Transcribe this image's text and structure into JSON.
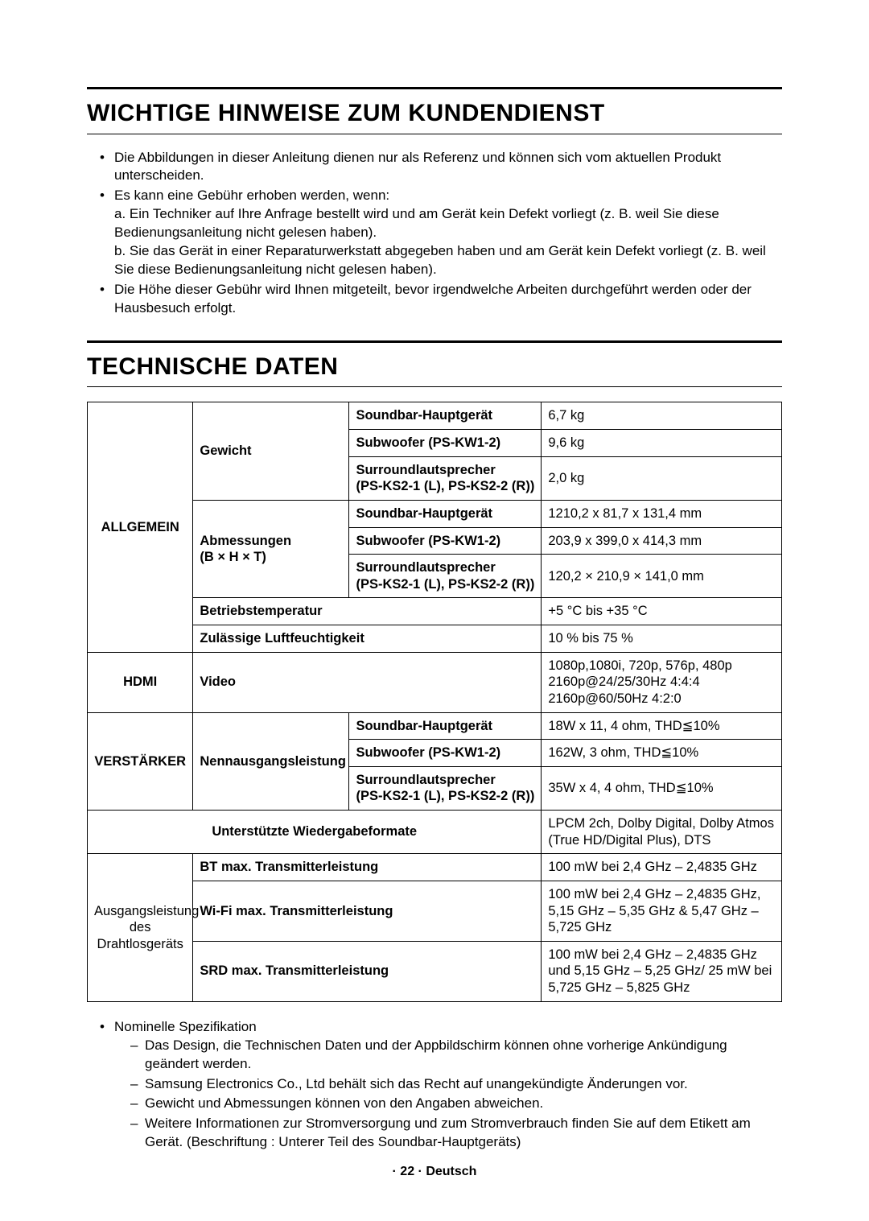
{
  "section1": {
    "title": "WICHTIGE HINWEISE ZUM KUNDENDIENST",
    "bullets": [
      "Die Abbildungen in dieser Anleitung dienen nur als Referenz und können sich vom aktuellen Produkt unterscheiden.",
      "Es kann eine Gebühr erhoben werden, wenn:",
      "Die Höhe dieser Gebühr wird Ihnen mitgeteilt, bevor irgendwelche Arbeiten durchgeführt werden oder der Hausbesuch erfolgt."
    ],
    "sub_a": "a. Ein Techniker auf Ihre Anfrage bestellt wird und am Gerät kein Defekt vorliegt (z. B. weil Sie diese Bedienungsanleitung nicht gelesen haben).",
    "sub_b": "b. Sie das Gerät in einer Reparaturwerkstatt abgegeben haben und am Gerät kein Defekt vorliegt (z. B. weil Sie diese Bedienungsanleitung nicht gelesen haben)."
  },
  "section2": {
    "title": "TECHNISCHE DATEN"
  },
  "table": {
    "type": "table",
    "border_color": "#000000",
    "background_color": "#ffffff",
    "categories": {
      "allgemein": "ALLGEMEIN",
      "hdmi": "HDMI",
      "verstaerker": "VERSTÄRKER",
      "wireless": "Ausgangsleistung des Drahtlosgeräts"
    },
    "rows": {
      "gewicht_label": "Gewicht",
      "gewicht_soundbar_l": "Soundbar-Hauptgerät",
      "gewicht_soundbar_v": "6,7 kg",
      "gewicht_sub_l": "Subwoofer (PS-KW1-2)",
      "gewicht_sub_v": "9,6 kg",
      "gewicht_surr_l1": "Surroundlautsprecher",
      "gewicht_surr_l2": "(PS-KS2-1 (L), PS-KS2-2 (R))",
      "gewicht_surr_v": "2,0 kg",
      "abm_label1": "Abmessungen",
      "abm_label2": "(B × H × T)",
      "abm_soundbar_l": "Soundbar-Hauptgerät",
      "abm_soundbar_v": "1210,2 x 81,7 x 131,4 mm",
      "abm_sub_l": "Subwoofer (PS-KW1-2)",
      "abm_sub_v": "203,9 x 399,0 x 414,3 mm",
      "abm_surr_l1": "Surroundlautsprecher",
      "abm_surr_l2": "(PS-KS2-1 (L), PS-KS2-2 (R))",
      "abm_surr_v": "120,2 × 210,9 × 141,0 mm",
      "betrieb_l": "Betriebstemperatur",
      "betrieb_v": "+5 °C bis +35 °C",
      "feucht_l": "Zulässige Luftfeuchtigkeit",
      "feucht_v": "10 % bis 75 %",
      "video_l": "Video",
      "video_v1": "1080p,1080i, 720p, 576p, 480p",
      "video_v2": "2160p@24/25/30Hz 4:4:4",
      "video_v3": "2160p@60/50Hz 4:2:0",
      "nenn_l": "Nennausgangsleistung",
      "nenn_soundbar_l": "Soundbar-Hauptgerät",
      "nenn_soundbar_v": "18W x 11, 4 ohm, THD≦10%",
      "nenn_sub_l": "Subwoofer (PS-KW1-2)",
      "nenn_sub_v": "162W, 3 ohm, THD≦10%",
      "nenn_surr_l1": "Surroundlautsprecher",
      "nenn_surr_l2": "(PS-KS2-1 (L), PS-KS2-2 (R))",
      "nenn_surr_v": "35W x 4, 4 ohm, THD≦10%",
      "formate_l": "Unterstützte Wiedergabeformate",
      "formate_v": "LPCM 2ch, Dolby Digital, Dolby Atmos (True HD/Digital Plus), DTS",
      "bt_l": "BT max. Transmitterleistung",
      "bt_v": "100 mW bei 2,4 GHz – 2,4835 GHz",
      "wifi_l": "Wi-Fi max. Transmitterleistung",
      "wifi_v": "100 mW bei 2,4 GHz – 2,4835 GHz, 5,15 GHz – 5,35 GHz & 5,47 GHz – 5,725 GHz",
      "srd_l": "SRD max. Transmitterleistung",
      "srd_v": "100 mW bei 2,4 GHz – 2,4835 GHz und 5,15 GHz – 5,25 GHz/ 25 mW bei 5,725 GHz – 5,825 GHz"
    }
  },
  "footnotes": {
    "lead": "Nominelle Spezifikation",
    "items": [
      "Das Design, die Technischen Daten und der Appbildschirm können ohne vorherige Ankündigung geändert werden.",
      "Samsung Electronics Co., Ltd behält sich das Recht auf unangekündigte Änderungen vor.",
      "Gewicht und Abmessungen können von den Angaben abweichen.",
      "Weitere Informationen zur Stromversorgung und zum Stromverbrauch finden Sie auf dem Etikett am Gerät. (Beschriftung : Unterer Teil des Soundbar-Hauptgeräts)"
    ]
  },
  "footer": "· 22 · Deutsch"
}
